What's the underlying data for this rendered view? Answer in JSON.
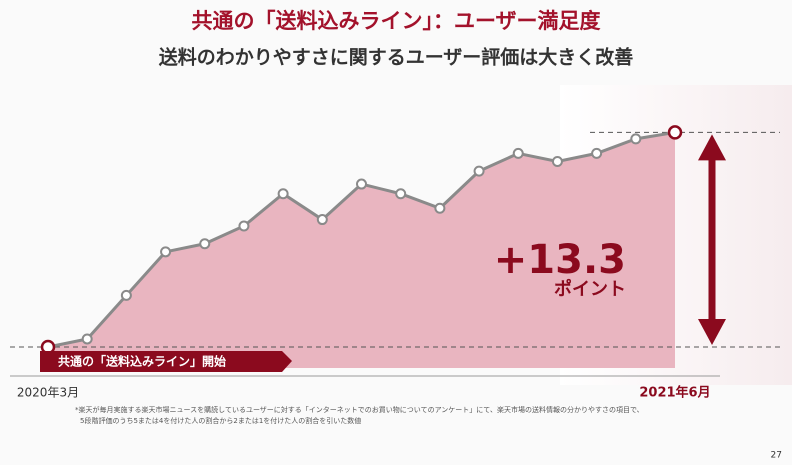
{
  "chart_data": {
    "type": "area",
    "title": "共通の「送料込みライン」：ユーザー満足度",
    "subtitle": "送料のわかりやすさに関するユーザー評価は大きく改善",
    "categories": [
      "2020年3月",
      null,
      null,
      null,
      null,
      null,
      null,
      null,
      null,
      null,
      null,
      null,
      null,
      null,
      null,
      null,
      "2021年6月"
    ],
    "values": [
      0,
      0.5,
      3.2,
      5.9,
      6.4,
      7.5,
      9.5,
      7.9,
      10.1,
      9.5,
      8.6,
      10.9,
      12.0,
      11.5,
      12.0,
      12.9,
      13.3
    ],
    "color": "#e9b5c0",
    "line_color": "#8a8a8a",
    "highlight_color": "#8b0a1e",
    "ylim": [
      -1.3,
      15
    ],
    "annotation": {
      "value": "+13.3",
      "unit": "ポイント"
    },
    "banner": "共通の「送料込みライン」開始",
    "footnote": [
      "*楽天が毎月実施する楽天市場ニュースを購読しているユーザーに対する「インターネットでのお買い物についてのアンケート」にて、楽天市場の送料情報の分かりやすさの項目で、",
      "5段階評価のうち5または4を付けた人の割合から2または1を付けた人の割合を引いた数値"
    ],
    "page_number": "27"
  }
}
